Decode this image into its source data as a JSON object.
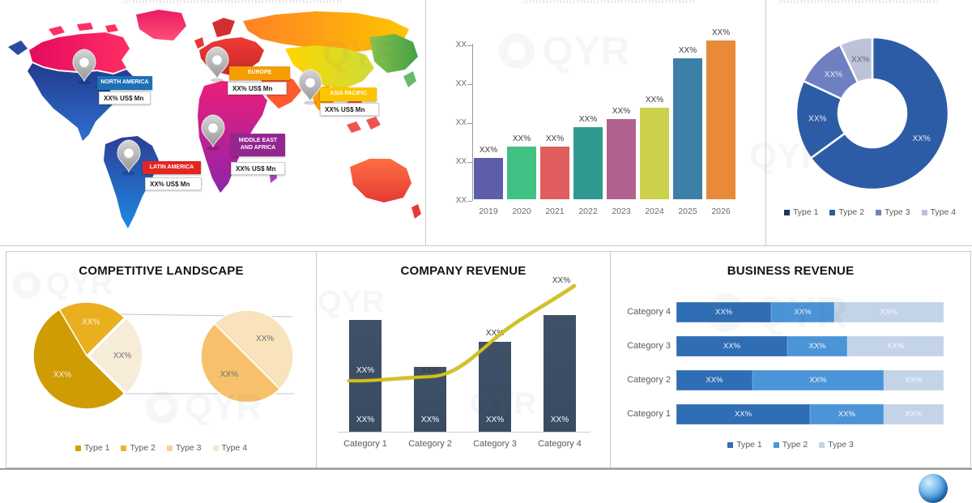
{
  "watermark": "QYR",
  "map": {
    "value_unit": "US$ Mn",
    "regions": [
      {
        "name": "NORTH AMERICA",
        "value": "XX% US$ Mn",
        "color": "#1d70b7"
      },
      {
        "name": "EUROPE",
        "value": "XX% US$ Mn",
        "color": "#f59c00"
      },
      {
        "name": "ASIA PACIFIC",
        "value": "XX% US$ Mn",
        "color": "#fdc500"
      },
      {
        "name": "MIDDLE EAST AND AFRICA",
        "value": "XX% US$ Mn",
        "color": "#93278f"
      },
      {
        "name": "LATIN AMERICA",
        "value": "XX% US$ Mn",
        "color": "#e52521"
      }
    ]
  },
  "chart_data": [
    {
      "id": "market-size-by-year",
      "type": "bar",
      "title": "",
      "categories": [
        "2019",
        "2020",
        "2021",
        "2022",
        "2023",
        "2024",
        "2025",
        "2026"
      ],
      "values": [
        26,
        33,
        33,
        45,
        50,
        57,
        88,
        99
      ],
      "value_labels": [
        "XX%",
        "XX%",
        "XX%",
        "XX%",
        "XX%",
        "XX%",
        "XX%",
        "XX%"
      ],
      "colors": [
        "#5d5ea9",
        "#41c184",
        "#e05d5d",
        "#2f9a8f",
        "#b2628f",
        "#ccd14b",
        "#3c80a8",
        "#e88a39"
      ],
      "ylim": [
        0,
        100
      ],
      "ytick_labels": [
        "XX",
        "XX",
        "XX",
        "XX",
        "XX"
      ],
      "grid": false,
      "legend_position": "none"
    },
    {
      "id": "market-share-by-type",
      "type": "pie",
      "donut": true,
      "title": "",
      "labels": [
        "Type 1",
        "Type 2",
        "Type 3",
        "Type 4"
      ],
      "values": [
        65,
        17,
        11,
        7
      ],
      "slice_labels": [
        "XX%",
        "XX%",
        "XX%",
        "XX%"
      ],
      "colors": [
        "#2d5ca6",
        "#2d5ca6",
        "#6f80c2",
        "#bcc3d8"
      ],
      "legend_colors": [
        "#17375e",
        "#2d5ca6",
        "#6f80c2",
        "#bcc3d8"
      ],
      "legend_position": "bottom"
    },
    {
      "id": "competitive-landscape",
      "type": "pie",
      "variant": "pie-of-pie",
      "title": "COMPETITIVE LANDSCAPE",
      "main_slices": [
        {
          "label": "XX%",
          "value": 54,
          "color": "#cf9c04"
        },
        {
          "label": "XX%",
          "value": 21,
          "color": "#eaaf1e"
        },
        {
          "label": "XX%",
          "value": 25,
          "color": "#f6ecd8"
        }
      ],
      "secondary_slices": [
        {
          "label": "XX%",
          "value": 50,
          "color": "#f8e3bd"
        },
        {
          "label": "XX%",
          "value": 50,
          "color": "#f6c16a"
        }
      ],
      "legend": [
        "Type 1",
        "Type 2",
        "Type 3",
        "Type 4"
      ],
      "legend_colors": [
        "#d1a106",
        "#eeb434",
        "#f7d096",
        "#f4e7cd"
      ],
      "legend_position": "bottom"
    },
    {
      "id": "company-revenue",
      "type": "bar",
      "title": "COMPANY REVENUE",
      "categories": [
        "Category 1",
        "Category 2",
        "Category 3",
        "Category 4"
      ],
      "values": [
        62,
        36,
        50,
        65
      ],
      "inbar_labels": [
        "XX%",
        "XX%",
        "XX%",
        "XX%"
      ],
      "bar_color": "#3e5168",
      "line": {
        "color": "#d4c219",
        "values": [
          29,
          30,
          51,
          78
        ],
        "labels": [
          "XX%",
          "XX%",
          "XX%",
          "XX%"
        ]
      },
      "ylim": [
        0,
        100
      ]
    },
    {
      "id": "business-revenue",
      "type": "bar",
      "horizontal": true,
      "stacked": true,
      "title": "BUSINESS REVENUE",
      "categories": [
        "Category 4",
        "Category 3",
        "Category 2",
        "Category 1"
      ],
      "series": [
        {
          "name": "Type 1",
          "color": "#2f6db4",
          "values": [
            35.5,
            41.5,
            28.5,
            50
          ]
        },
        {
          "name": "Type 2",
          "color": "#4b94d8",
          "values": [
            23.5,
            22.5,
            49,
            27.5
          ]
        },
        {
          "name": "Type 3",
          "color": "#c3d3e8",
          "values": [
            41,
            36,
            22.5,
            22.5
          ]
        }
      ],
      "segment_labels": [
        [
          "XX%",
          "XX%",
          "XX%"
        ],
        [
          "XX%",
          "XX%",
          "XX%"
        ],
        [
          "XX%",
          "XX%",
          "XX%"
        ],
        [
          "XX%",
          "XX%",
          "XX%"
        ]
      ],
      "legend": [
        "Type 1",
        "Type 2",
        "Type 3"
      ],
      "legend_position": "bottom"
    }
  ]
}
